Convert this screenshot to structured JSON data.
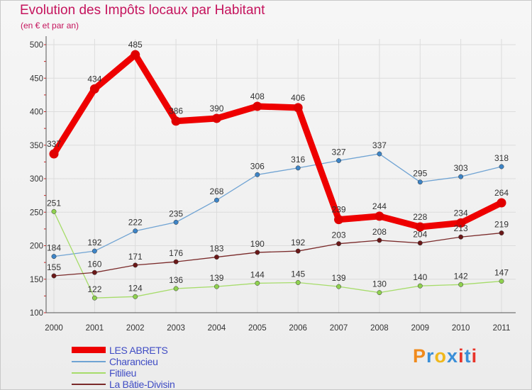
{
  "title": "Evolution des Impôts locaux par Habitant",
  "subtitle": "(en € et par an)",
  "logo": {
    "text": "Proxiti",
    "letter_colors": [
      "#f08a1c",
      "#3a8fd8",
      "#f0b81c",
      "#3a8fd8",
      "#e8342a",
      "#3a8fd8",
      "#e8342a"
    ]
  },
  "chart_data": {
    "type": "line",
    "title": "Evolution des Impôts locaux par Habitant",
    "subtitle": "(en € et par an)",
    "xlabel": "",
    "ylabel": "",
    "x": [
      "2000",
      "2001",
      "2002",
      "2003",
      "2004",
      "2005",
      "2006",
      "2007",
      "2008",
      "2009",
      "2010",
      "2011"
    ],
    "ylim": [
      100,
      500
    ],
    "yticks": [
      100,
      150,
      200,
      250,
      300,
      350,
      400,
      450,
      500
    ],
    "grid": true,
    "legend_position": "bottom-left",
    "series": [
      {
        "name": "LES ABRETS",
        "color": "#ee0000",
        "marker_color": "#e00000",
        "emphasis": true,
        "values": [
          337,
          434,
          485,
          386,
          390,
          408,
          406,
          239,
          244,
          228,
          234,
          264
        ],
        "labels": [
          "337",
          "434",
          "485",
          "386",
          "390",
          "408",
          "406",
          "239",
          "244",
          "228",
          "234",
          "264"
        ]
      },
      {
        "name": "Charancieu",
        "color": "#6fa3d3",
        "marker_color": "#3d84c6",
        "emphasis": false,
        "values": [
          184,
          192,
          222,
          235,
          268,
          306,
          316,
          327,
          337,
          295,
          303,
          318
        ],
        "labels": [
          "184",
          "192",
          "222",
          "235",
          "268",
          "306",
          "316",
          "327",
          "337",
          "295",
          "303",
          "318"
        ]
      },
      {
        "name": "Fitilieu",
        "color": "#a6dc6a",
        "marker_color": "#8fd14f",
        "emphasis": false,
        "values": [
          251,
          122,
          124,
          136,
          139,
          144,
          145,
          139,
          130,
          140,
          142,
          147
        ],
        "labels": [
          "251",
          "122",
          "124",
          "136",
          "139",
          "144",
          "145",
          "139",
          "130",
          "140",
          "142",
          "147"
        ]
      },
      {
        "name": "La Bâtie-Divisin",
        "color": "#7a2a2a",
        "marker_color": "#6a1818",
        "emphasis": false,
        "values": [
          155,
          160,
          171,
          176,
          183,
          190,
          192,
          203,
          208,
          204,
          213,
          219
        ],
        "labels": [
          "155",
          "160",
          "171",
          "176",
          "183",
          "190",
          "192",
          "203",
          "208",
          "204",
          "213",
          "219"
        ]
      }
    ]
  }
}
